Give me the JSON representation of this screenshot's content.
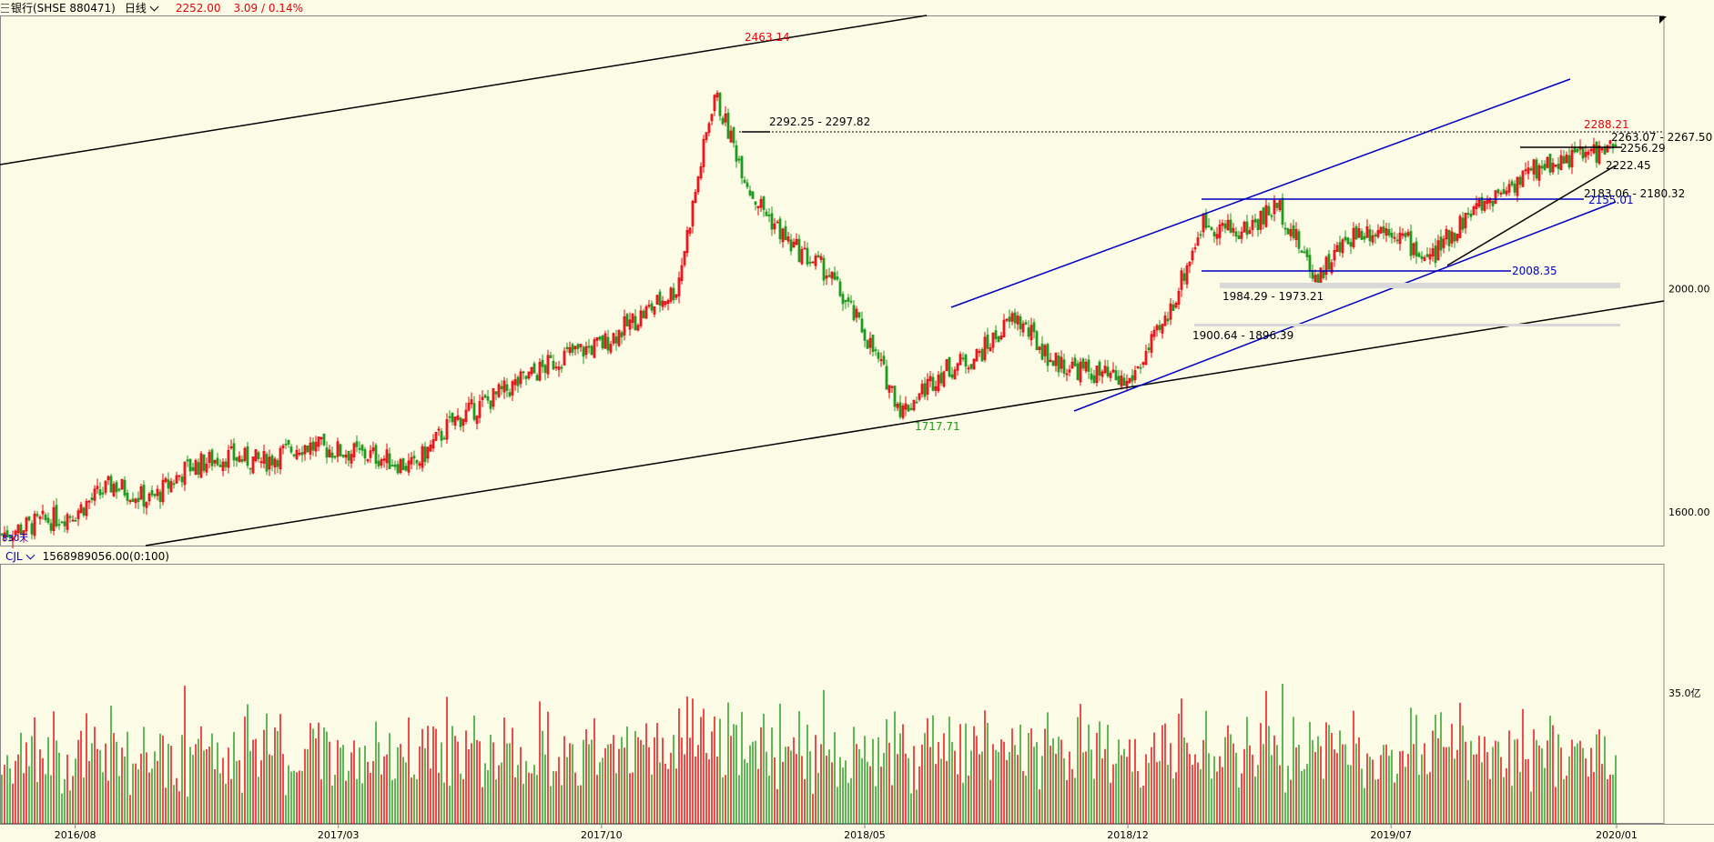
{
  "header": {
    "title": "银行(SHSE 880471)",
    "period": "日线",
    "price": "2252.00",
    "change": "3.09 / 0.14%"
  },
  "volume_header": {
    "indicator": "CJL",
    "value": "1568989056.00(0:100)"
  },
  "colors": {
    "background": "#fcfbe6",
    "up": "#e8000b",
    "down": "#1f9a1f",
    "trendline_blue": "#0000c0",
    "trendline_black": "#000000"
  },
  "chart_data": [
    {
      "type": "candlestick",
      "title": "银行(SHSE 880471)",
      "y_axis_labels": [
        "2000.00",
        "1600.00"
      ],
      "ylim": [
        1540,
        2490
      ],
      "x_axis_labels": [
        "2016/08",
        "2017/03",
        "2017/10",
        "2018/05",
        "2018/12",
        "2019/07",
        "2020/01"
      ],
      "x_range": [
        "2016/06",
        "2020/01"
      ],
      "corner_label": "830天",
      "series": [
        {
          "name": "close",
          "x": [
            "2016/06",
            "2016/08",
            "2016/09",
            "2016/10",
            "2016/11",
            "2016/12",
            "2017/01",
            "2017/02",
            "2017/03",
            "2017/04",
            "2017/05",
            "2017/06",
            "2017/07",
            "2017/08",
            "2017/09",
            "2017/10",
            "2017/11",
            "2017/12",
            "2018/01",
            "2018/02",
            "2018/03",
            "2018/04",
            "2018/05",
            "2018/06",
            "2018/07",
            "2018/08",
            "2018/09",
            "2018/10",
            "2018/11",
            "2018/12",
            "2019/01",
            "2019/02",
            "2019/03",
            "2019/04",
            "2019/05",
            "2019/06",
            "2019/07",
            "2019/08",
            "2019/09",
            "2019/10",
            "2019/11",
            "2019/12",
            "2020/01"
          ],
          "values": [
            1560,
            1600,
            1650,
            1620,
            1680,
            1700,
            1690,
            1720,
            1710,
            1700,
            1680,
            1760,
            1800,
            1840,
            1880,
            1900,
            1950,
            2000,
            2350,
            2170,
            2080,
            2030,
            1920,
            1780,
            1850,
            1880,
            1950,
            1870,
            1850,
            1830,
            1940,
            2120,
            2100,
            2150,
            2020,
            2100,
            2110,
            2050,
            2130,
            2180,
            2220,
            2240,
            2252
          ]
        }
      ],
      "annotations": [
        {
          "text": "2463.14",
          "x": "2018/01",
          "y": 2463.14,
          "color": "#e8000b"
        },
        {
          "text": "2292.25 - 2297.82",
          "x": "2018/01",
          "y": 2295
        },
        {
          "text": "1717.71",
          "x": "2018/06",
          "y": 1717.71,
          "color": "#1f9a1f"
        },
        {
          "text": "2288.21",
          "x": "2019/12",
          "y": 2288.21,
          "color": "#e8000b"
        },
        {
          "text": "2263.07 - 2267.50",
          "x": "2019/12",
          "y": 2265
        },
        {
          "text": "2256.29",
          "x": "2019/12",
          "y": 2256.29
        },
        {
          "text": "2222.45",
          "x": "2019/12",
          "y": 2222.45
        },
        {
          "text": "2183.06 - 2180.32",
          "x": "2019/11",
          "y": 2181
        },
        {
          "text": "2155.01",
          "x": "2019/11",
          "y": 2155.01,
          "color": "#0000c0"
        },
        {
          "text": "2008.35",
          "x": "2019/08",
          "y": 2008.35,
          "color": "#0000c0"
        },
        {
          "text": "1984.29 - 1973.21",
          "x": "2019/01",
          "y": 1978
        },
        {
          "text": "1900.64 - 1896.39",
          "x": "2019/01",
          "y": 1898
        }
      ]
    },
    {
      "type": "bar",
      "title": "CJL",
      "y_axis_label": "35.0亿",
      "unit": "亿",
      "ylim": [
        0,
        60
      ],
      "x_axis_labels": [
        "2016/08",
        "2017/03",
        "2017/10",
        "2018/05",
        "2018/12",
        "2019/07",
        "2020/01"
      ]
    }
  ]
}
